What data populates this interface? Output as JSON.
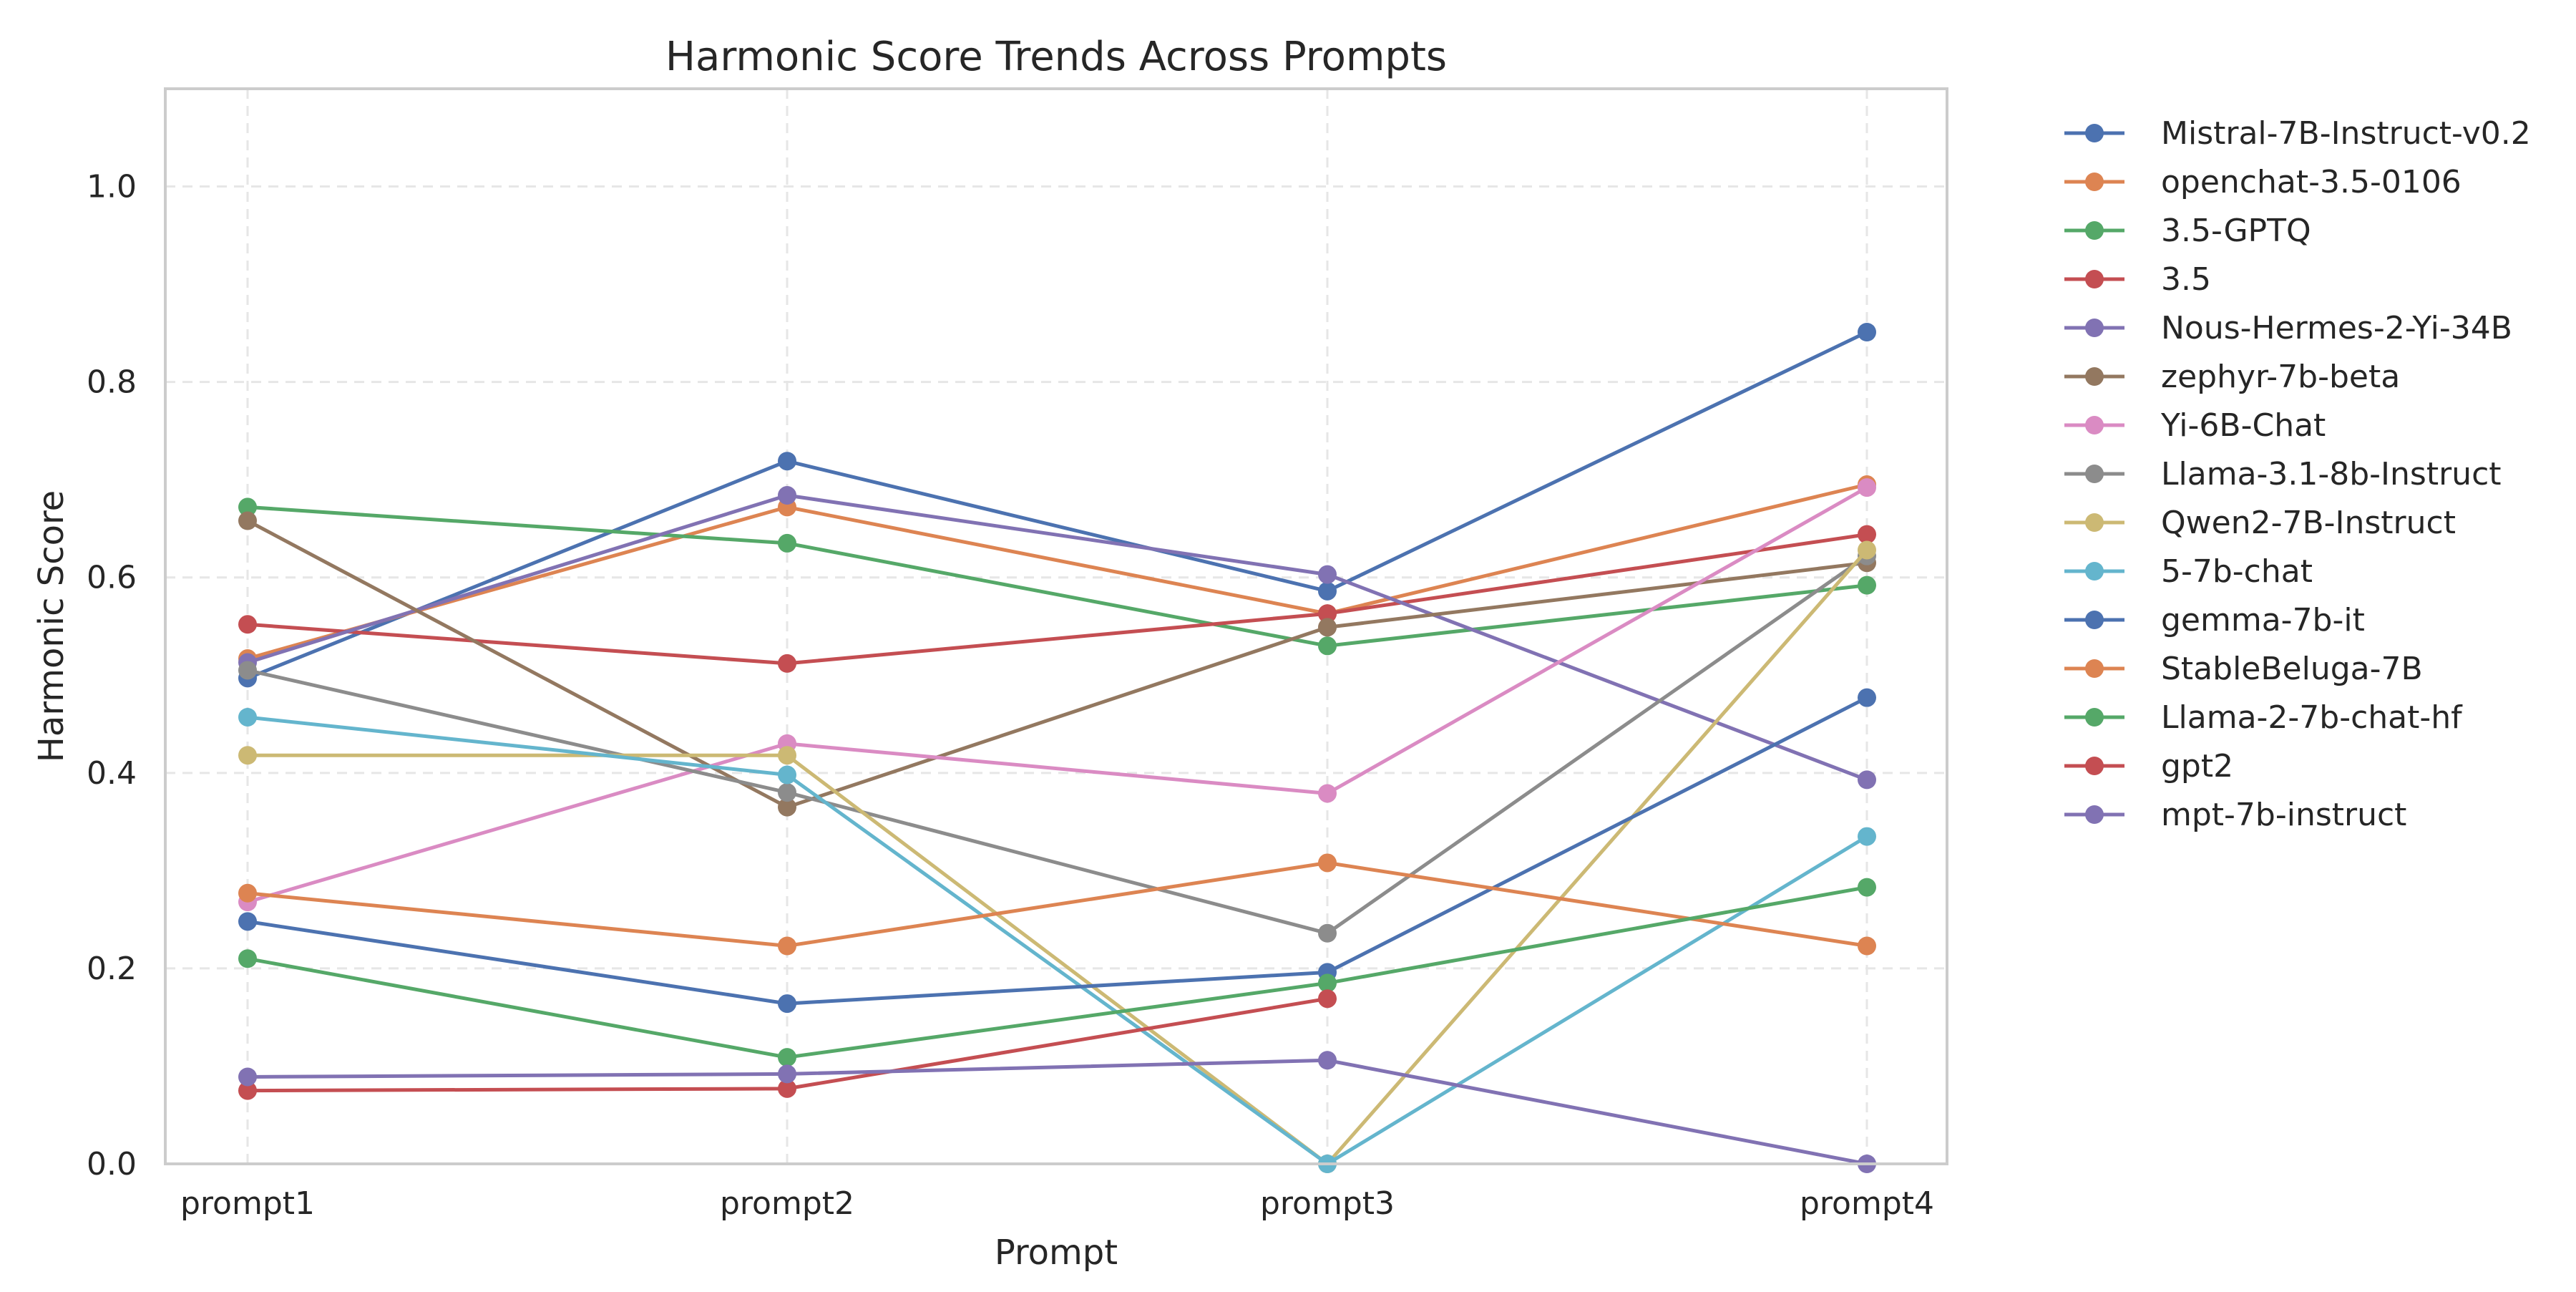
{
  "chart_data": {
    "type": "line",
    "title": "Harmonic Score Trends Across Prompts",
    "xlabel": "Prompt",
    "ylabel": "Harmonic Score",
    "categories": [
      "prompt1",
      "prompt2",
      "prompt3",
      "prompt4"
    ],
    "ylim": [
      0,
      1.1
    ],
    "yticks": [
      "0.0",
      "0.2",
      "0.4",
      "0.6",
      "0.8",
      "1.0"
    ],
    "grid": true,
    "legend_position": "outside-right",
    "series": [
      {
        "name": "Mistral-7B-Instruct-v0.2",
        "color": "#4c72b0",
        "values": [
          0.497,
          0.719,
          0.586,
          0.851
        ]
      },
      {
        "name": "openchat-3.5-0106",
        "color": "#dd8452",
        "values": [
          0.517,
          0.672,
          0.563,
          0.695
        ]
      },
      {
        "name": "3.5-GPTQ",
        "color": "#55a868",
        "values": [
          0.672,
          0.635,
          0.53,
          0.592
        ]
      },
      {
        "name": "3.5",
        "color": "#c44e52",
        "values": [
          0.552,
          0.512,
          0.563,
          0.644
        ]
      },
      {
        "name": "Nous-Hermes-2-Yi-34B",
        "color": "#8172b3",
        "values": [
          0.513,
          0.684,
          0.603,
          0.393
        ]
      },
      {
        "name": "zephyr-7b-beta",
        "color": "#937860",
        "values": [
          0.658,
          0.365,
          0.549,
          0.615
        ]
      },
      {
        "name": "Yi-6B-Chat",
        "color": "#da8bc3",
        "values": [
          0.268,
          0.43,
          0.379,
          0.692
        ]
      },
      {
        "name": "Llama-3.1-8b-Instruct",
        "color": "#8c8c8c",
        "values": [
          0.505,
          0.38,
          0.236,
          0.622
        ]
      },
      {
        "name": "Qwen2-7B-Instruct",
        "color": "#ccb974",
        "values": [
          0.418,
          0.418,
          0.0,
          0.628
        ]
      },
      {
        "name": "5-7b-chat",
        "color": "#64b5cd",
        "values": [
          0.457,
          0.398,
          0.0,
          0.335
        ]
      },
      {
        "name": "gemma-7b-it",
        "color": "#4c72b0",
        "values": [
          0.248,
          0.164,
          0.196,
          0.477
        ]
      },
      {
        "name": "StableBeluga-7B",
        "color": "#dd8452",
        "values": [
          0.277,
          0.223,
          0.308,
          0.223
        ]
      },
      {
        "name": "Llama-2-7b-chat-hf",
        "color": "#55a868",
        "values": [
          0.21,
          0.109,
          0.185,
          0.283
        ]
      },
      {
        "name": "gpt2",
        "color": "#c44e52",
        "values": [
          0.075,
          0.077,
          0.169,
          null
        ]
      },
      {
        "name": "mpt-7b-instruct",
        "color": "#8172b3",
        "values": [
          0.089,
          0.092,
          0.106,
          0.0
        ]
      }
    ]
  }
}
